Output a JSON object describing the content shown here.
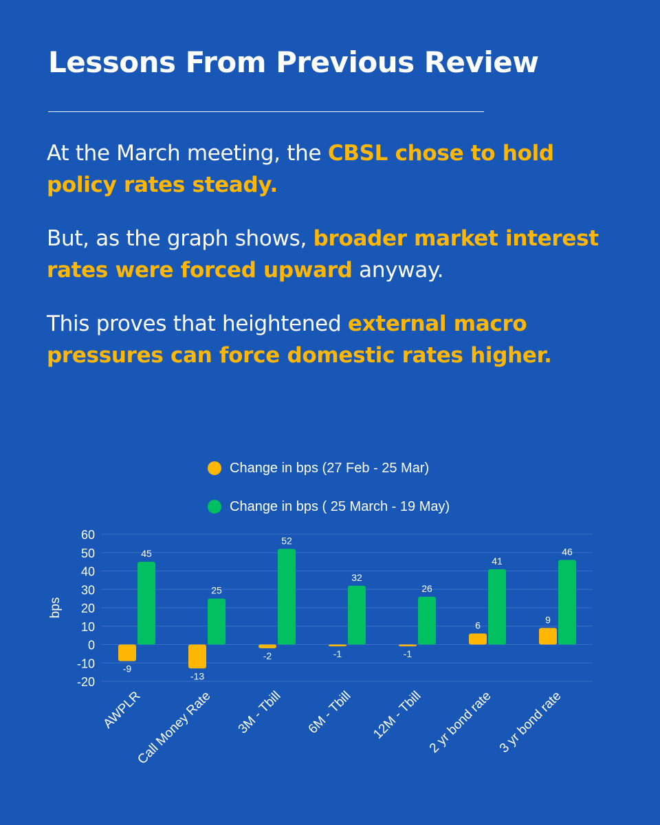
{
  "title": "Lessons From Previous Review",
  "paragraphs": [
    {
      "t1": "At the March meeting, the ",
      "h1": "CBSL chose to hold policy rates steady.",
      "t2": ""
    },
    {
      "t1": "But, as the graph shows, ",
      "h1": "broader market interest rates were forced upward",
      "t2": " anyway."
    },
    {
      "t1": "This proves that heightened ",
      "h1": "external macro pressures can force domestic rates higher.",
      "t2": ""
    }
  ],
  "colors": {
    "background": "#1857b6",
    "highlight": "#ffb703",
    "series1": "#ffb703",
    "series2": "#00c060"
  },
  "chart_data": {
    "type": "bar",
    "categories": [
      "AWPLR",
      "Call Money Rate",
      "3M - Tbill",
      "6M - Tbill",
      "12M - Tbill",
      "2 yr bond rate",
      "3 yr bond rate"
    ],
    "series": [
      {
        "name": "Change in bps (27 Feb - 25 Mar)",
        "values": [
          -9,
          -13,
          -2,
          -1,
          -1,
          6,
          9
        ],
        "color": "#ffb703"
      },
      {
        "name": "Change in bps ( 25 March - 19 May)",
        "values": [
          45,
          25,
          52,
          32,
          26,
          41,
          46
        ],
        "color": "#00c060"
      }
    ],
    "ylabel": "bps",
    "xlabel": "",
    "ylim": [
      -20,
      60
    ],
    "yticks": [
      60,
      50,
      40,
      30,
      20,
      10,
      0,
      -10,
      -20
    ],
    "grid": true,
    "legend": "top"
  }
}
